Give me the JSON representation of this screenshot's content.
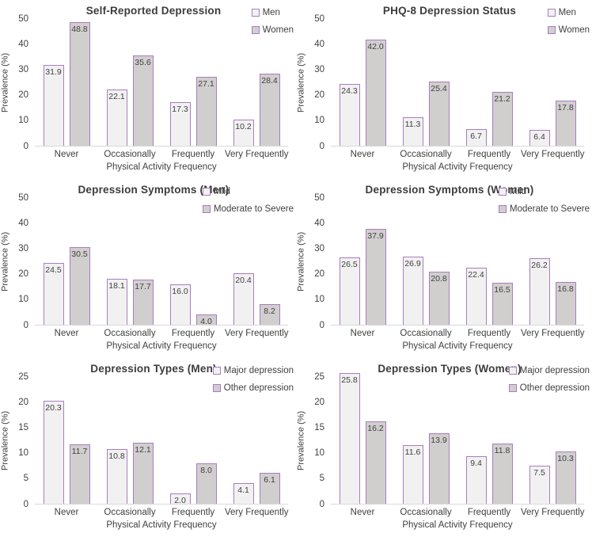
{
  "colors": {
    "bar_border": "#a97cc0",
    "series1_fill": "#f2f1f1",
    "series2_fill": "#d1cece",
    "label_text": "#404040",
    "axis_text": "#404040",
    "axis_line": "#d9d9d9",
    "title_text": "#3c3c3c"
  },
  "chart_data": [
    {
      "type": "bar",
      "title": "Self-Reported Depression",
      "xlabel": "Physical Activity Frequency",
      "ylabel": "Prevalence (%)",
      "ylim": [
        0,
        50
      ],
      "ytick_step": 10,
      "grid": false,
      "legend_position": "top-right",
      "categories": [
        "Never",
        "Occasionally",
        "Frequently",
        "Very Frequently"
      ],
      "series": [
        {
          "name": "Men",
          "values": [
            31.9,
            22.1,
            17.3,
            10.2
          ]
        },
        {
          "name": "Women",
          "values": [
            48.8,
            35.6,
            27.1,
            28.4
          ]
        }
      ]
    },
    {
      "type": "bar",
      "title": "PHQ-8 Depression Status",
      "xlabel": "Physical Activity Frequency",
      "ylabel": "Prevalence (%)",
      "ylim": [
        0,
        50
      ],
      "ytick_step": 10,
      "grid": false,
      "legend_position": "top-right",
      "categories": [
        "Never",
        "Occasionally",
        "Frequently",
        "Very Frequently"
      ],
      "series": [
        {
          "name": "Men",
          "values": [
            24.3,
            11.3,
            6.7,
            6.4
          ]
        },
        {
          "name": "Women",
          "values": [
            42.0,
            25.4,
            21.2,
            17.8
          ]
        }
      ]
    },
    {
      "type": "bar",
      "title": "Depression Symptoms (Men)",
      "xlabel": "Physical Activity Frequency",
      "ylabel": "Prevalence (%)",
      "ylim": [
        0,
        50
      ],
      "ytick_step": 10,
      "grid": false,
      "legend_position": "top-right",
      "categories": [
        "Never",
        "Occasionally",
        "Frequently",
        "Very Frequently"
      ],
      "series": [
        {
          "name": "Mild",
          "values": [
            24.5,
            18.1,
            16.0,
            20.4
          ]
        },
        {
          "name": "Moderate to Severe",
          "values": [
            30.5,
            17.7,
            4.0,
            8.2
          ]
        }
      ]
    },
    {
      "type": "bar",
      "title": "Depression Symptoms (Women)",
      "xlabel": "Physical Activity Frequency",
      "ylabel": "Prevalence (%)",
      "ylim": [
        0,
        50
      ],
      "ytick_step": 10,
      "grid": false,
      "legend_position": "top-right",
      "categories": [
        "Never",
        "Occasionally",
        "Frequently",
        "Very Frequently"
      ],
      "series": [
        {
          "name": "Mild",
          "values": [
            26.5,
            26.9,
            22.4,
            26.2
          ]
        },
        {
          "name": "Moderate to Severe",
          "values": [
            37.9,
            20.8,
            16.5,
            16.8
          ]
        }
      ]
    },
    {
      "type": "bar",
      "title": "Depression Types (Men)",
      "xlabel": "Physical Activity Frequency",
      "ylabel": "Prevalence (%)",
      "ylim": [
        0,
        25
      ],
      "ytick_step": 5,
      "grid": false,
      "legend_position": "top-right",
      "categories": [
        "Never",
        "Occasionally",
        "Frequently",
        "Very Frequently"
      ],
      "series": [
        {
          "name": "Major depression",
          "values": [
            20.3,
            10.8,
            2.0,
            4.1
          ]
        },
        {
          "name": "Other depression",
          "values": [
            11.7,
            12.1,
            8.0,
            6.1
          ]
        }
      ]
    },
    {
      "type": "bar",
      "title": "Depression Types (Women)",
      "xlabel": "Physical Activity Frequency",
      "ylabel": "Prevalence (%)",
      "ylim": [
        0,
        25
      ],
      "ytick_step": 5,
      "grid": false,
      "legend_position": "top-right",
      "categories": [
        "Never",
        "Occasionally",
        "Frequently",
        "Very Frequently"
      ],
      "series": [
        {
          "name": "Major depression",
          "values": [
            25.8,
            11.6,
            9.4,
            7.5
          ]
        },
        {
          "name": "Other depression",
          "values": [
            16.2,
            13.9,
            11.8,
            10.3
          ]
        }
      ]
    }
  ]
}
